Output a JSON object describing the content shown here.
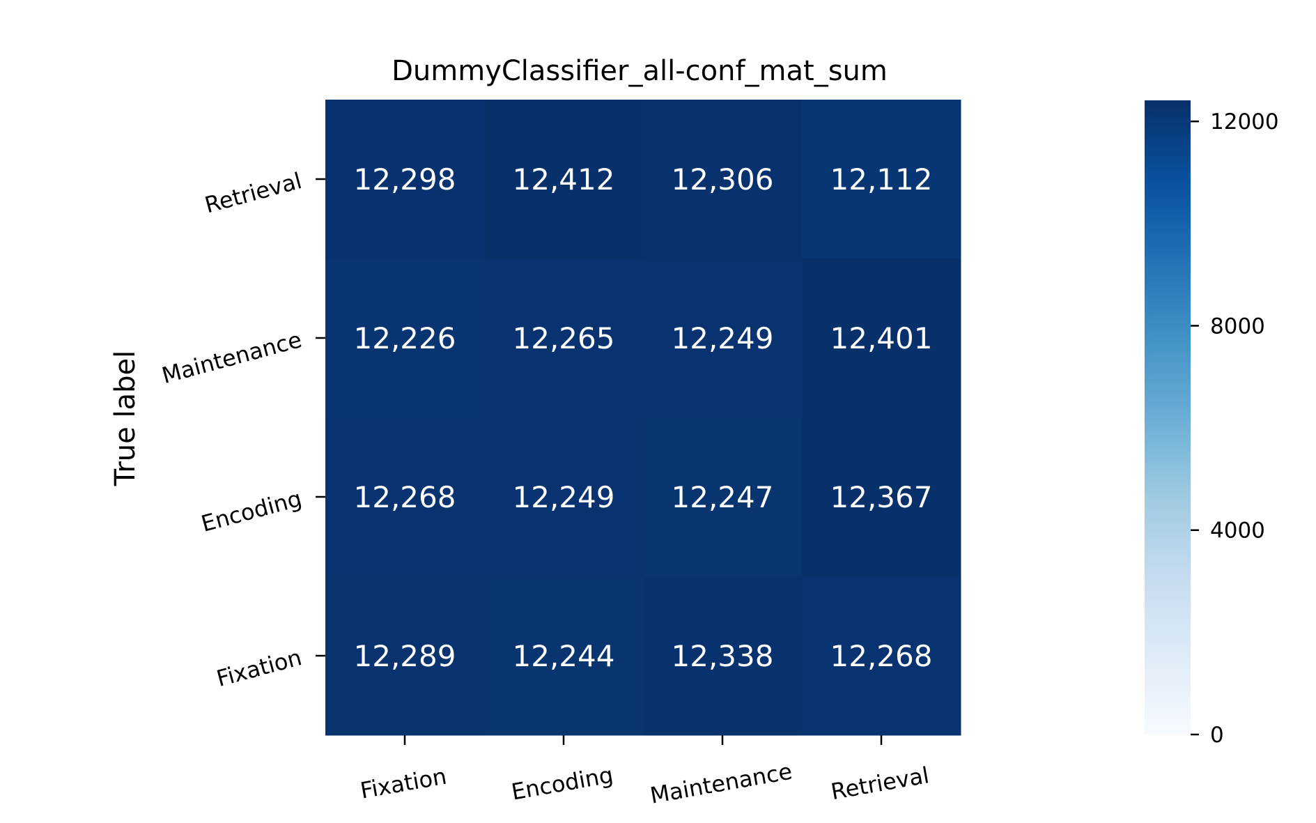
{
  "chart_data": {
    "type": "heatmap",
    "title": "DummyClassifier_all-conf_mat_sum",
    "xlabel": "",
    "ylabel": "True label",
    "x_categories": [
      "Fixation",
      "Encoding",
      "Maintenance",
      "Retrieval"
    ],
    "y_categories": [
      "Retrieval",
      "Maintenance",
      "Encoding",
      "Fixation"
    ],
    "values": [
      [
        12298,
        12412,
        12306,
        12112
      ],
      [
        12226,
        12265,
        12249,
        12401
      ],
      [
        12268,
        12249,
        12247,
        12367
      ],
      [
        12289,
        12244,
        12338,
        12268
      ]
    ],
    "cell_labels": [
      [
        "12,298",
        "12,412",
        "12,306",
        "12,112"
      ],
      [
        "12,226",
        "12,265",
        "12,249",
        "12,401"
      ],
      [
        "12,268",
        "12,249",
        "12,247",
        "12,367"
      ],
      [
        "12,289",
        "12,244",
        "12,338",
        "12,268"
      ]
    ],
    "colorbar": {
      "min": 0,
      "max": 12412,
      "ticks": [
        0,
        4000,
        8000,
        12000
      ],
      "tick_labels": [
        "0",
        "4000",
        "8000",
        "12000"
      ],
      "colormap": "Blues",
      "colors": [
        "#f7fbff",
        "#deebf7",
        "#c6dbef",
        "#9ecae1",
        "#6baed6",
        "#4292c6",
        "#2171b5",
        "#08519c",
        "#08306b"
      ]
    },
    "grid": false,
    "legend": "colorbar-right"
  }
}
